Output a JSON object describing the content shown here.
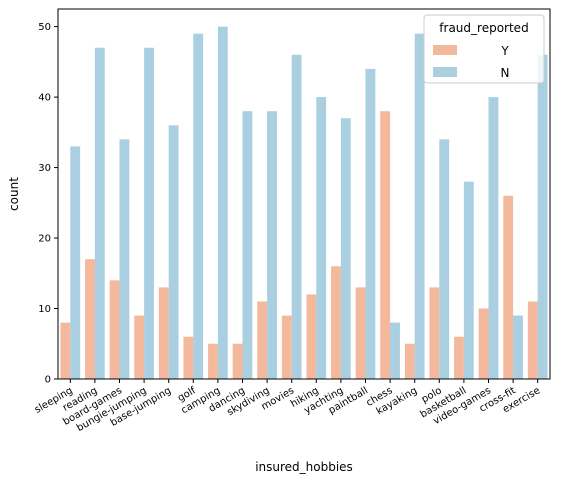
{
  "chart_data": {
    "type": "bar",
    "xlabel": "insured_hobbies",
    "ylabel": "count",
    "ylim": [
      0,
      52.5
    ],
    "yticks": [
      0,
      10,
      20,
      30,
      40,
      50
    ],
    "categories": [
      "sleeping",
      "reading",
      "board-games",
      "bungie-jumping",
      "base-jumping",
      "golf",
      "camping",
      "dancing",
      "skydiving",
      "movies",
      "hiking",
      "yachting",
      "paintball",
      "chess",
      "kayaking",
      "polo",
      "basketball",
      "video-games",
      "cross-fit",
      "exercise"
    ],
    "series": [
      {
        "name": "Y",
        "color": "#f4b89c",
        "values": [
          8,
          17,
          14,
          9,
          13,
          6,
          5,
          5,
          11,
          9,
          12,
          16,
          13,
          38,
          5,
          13,
          6,
          10,
          26,
          11
        ]
      },
      {
        "name": "N",
        "color": "#a9cfe1",
        "values": [
          33,
          47,
          34,
          47,
          36,
          49,
          50,
          38,
          38,
          46,
          40,
          37,
          44,
          8,
          49,
          34,
          28,
          40,
          9,
          46
        ]
      }
    ],
    "legend": {
      "title": "fraud_reported",
      "position": "top-right"
    },
    "tick_rotation": -30,
    "grid": false
  }
}
